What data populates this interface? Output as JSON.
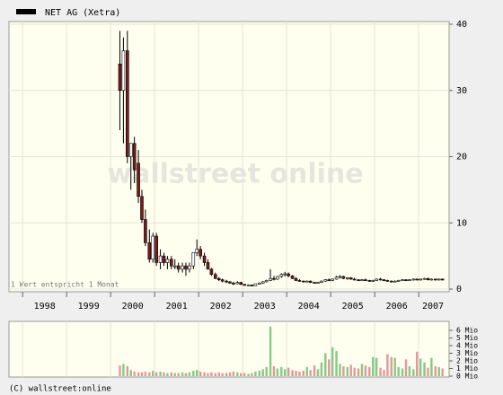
{
  "chart_data": {
    "type": "candlestick",
    "series": [
      {
        "name": "NET AG (Xetra)",
        "color": "#000000",
        "up_color": "#ffffff",
        "down_color": "#7a1c1c",
        "open": [
          34,
          30,
          36,
          20,
          22,
          19,
          14,
          10.5,
          7,
          4.5,
          8,
          4,
          5,
          4,
          4.5,
          3.5,
          3.5,
          3,
          3.5,
          3,
          3.5,
          5.5,
          6,
          5,
          4,
          3,
          2.2,
          1.6,
          1.4,
          1.2,
          1.1,
          0.9,
          0.8,
          1,
          0.7,
          0.6,
          0.6,
          0.5,
          0.8,
          0.9,
          1.1,
          1.3,
          1.6,
          1.5,
          1.9,
          2.2,
          2.3,
          2,
          1.6,
          1.3,
          1.2,
          1.1,
          1.2,
          1,
          0.9,
          1,
          1.2,
          1.4,
          1.3,
          1.5,
          1.8,
          1.9,
          1.6,
          1.7,
          1.5,
          1.4,
          1.3,
          1.4,
          1.3,
          1.2,
          1.3,
          1.5,
          1.4,
          1.3,
          1.2,
          1.1,
          1.2,
          1.3,
          1.4,
          1.3,
          1.4,
          1.5,
          1.4,
          1.5,
          1.6,
          1.4,
          1.5,
          1.4,
          1.5
        ],
        "high": [
          39,
          38,
          39,
          22,
          23,
          21,
          15,
          12,
          9,
          8.5,
          8.5,
          6,
          5.5,
          5,
          5,
          4.5,
          4,
          4,
          4,
          4,
          5.5,
          7.5,
          6.5,
          5.5,
          4.5,
          3.2,
          2.5,
          1.8,
          1.6,
          1.4,
          1.2,
          1.1,
          1.2,
          1.1,
          0.8,
          0.7,
          0.7,
          0.8,
          1,
          1.2,
          1.4,
          3,
          2,
          2,
          2.4,
          2.6,
          2.5,
          2.1,
          1.8,
          1.5,
          1.3,
          1.3,
          1.3,
          1.1,
          1.1,
          1.3,
          1.5,
          1.6,
          1.6,
          2,
          2.1,
          2,
          1.8,
          1.8,
          1.7,
          1.5,
          1.5,
          1.6,
          1.4,
          1.4,
          1.6,
          1.7,
          1.5,
          1.4,
          1.3,
          1.3,
          1.4,
          1.5,
          1.5,
          1.5,
          1.6,
          1.6,
          1.6,
          1.7,
          1.7,
          1.6,
          1.6,
          1.6,
          1.6
        ],
        "low": [
          24,
          22,
          19,
          15,
          16,
          13,
          10,
          6.5,
          4,
          4,
          3.5,
          3,
          3.5,
          3,
          3,
          3,
          2.5,
          2.5,
          2,
          2.5,
          3,
          5,
          4.5,
          3.5,
          3,
          2,
          1.5,
          1.2,
          1,
          0.9,
          0.8,
          0.6,
          0.7,
          0.6,
          0.5,
          0.5,
          0.4,
          0.5,
          0.7,
          0.8,
          1,
          1.2,
          1.3,
          1.4,
          1.7,
          1.9,
          1.8,
          1.5,
          1.2,
          1.1,
          1,
          1,
          0.9,
          0.8,
          0.8,
          0.9,
          1.1,
          1.2,
          1.2,
          1.4,
          1.6,
          1.5,
          1.4,
          1.4,
          1.3,
          1.2,
          1.2,
          1.2,
          1.1,
          1.1,
          1.2,
          1.3,
          1.2,
          1.1,
          1,
          1,
          1.1,
          1.2,
          1.2,
          1.2,
          1.3,
          1.3,
          1.3,
          1.4,
          1.3,
          1.3,
          1.3,
          1.3,
          1.3
        ],
        "close": [
          30,
          36,
          20,
          22,
          18,
          14,
          10.5,
          7,
          4.5,
          8,
          4,
          5,
          4,
          4.5,
          3.5,
          3.5,
          3,
          3.5,
          3,
          3.5,
          5.5,
          6,
          5,
          4,
          3,
          2.2,
          1.6,
          1.4,
          1.2,
          1.1,
          0.9,
          0.8,
          1,
          0.7,
          0.6,
          0.6,
          0.5,
          0.8,
          0.9,
          1.1,
          1.3,
          1.6,
          1.5,
          1.9,
          2.2,
          2.3,
          2,
          1.6,
          1.3,
          1.2,
          1.1,
          1.2,
          1,
          0.9,
          1,
          1.2,
          1.4,
          1.3,
          1.5,
          1.8,
          1.9,
          1.6,
          1.7,
          1.5,
          1.4,
          1.3,
          1.4,
          1.3,
          1.2,
          1.3,
          1.5,
          1.4,
          1.3,
          1.2,
          1.1,
          1.2,
          1.3,
          1.4,
          1.3,
          1.4,
          1.5,
          1.4,
          1.5,
          1.6,
          1.4,
          1.5,
          1.4,
          1.5,
          1.4
        ],
        "volume": [
          1.4,
          1.6,
          1.3,
          0.8,
          0.6,
          0.5,
          0.5,
          0.6,
          0.5,
          0.7,
          0.5,
          0.6,
          0.5,
          0.4,
          0.5,
          0.4,
          0.4,
          0.5,
          0.4,
          0.5,
          0.7,
          0.8,
          0.6,
          0.5,
          0.4,
          0.5,
          0.4,
          0.5,
          0.4,
          0.4,
          0.5,
          0.6,
          0.5,
          0.4,
          0.4,
          0.3,
          0.4,
          0.6,
          0.7,
          0.9,
          1.2,
          6.5,
          1.3,
          1,
          1.2,
          0.9,
          1.1,
          0.8,
          0.7,
          0.6,
          0.7,
          1.2,
          0.8,
          1.4,
          0.9,
          1.8,
          3,
          2.2,
          3.8,
          3.3,
          1.6,
          1.3,
          1.2,
          1.5,
          1.1,
          1,
          1.6,
          1.4,
          1.2,
          2.5,
          2.4,
          1.1,
          0.8,
          2.9,
          2.5,
          2.4,
          1.2,
          1,
          2.2,
          1.3,
          0.9,
          3.2,
          2.3,
          1.8,
          1.1,
          2.4,
          1.3,
          1.2,
          1
        ],
        "volume_up_color": "#88c888",
        "volume_down_color": "#e09a9a"
      }
    ],
    "x": [
      2000.21,
      2000.29,
      2000.38,
      2000.46,
      2000.54,
      2000.63,
      2000.71,
      2000.79,
      2000.88,
      2000.96,
      2001.04,
      2001.13,
      2001.21,
      2001.29,
      2001.38,
      2001.46,
      2001.54,
      2001.63,
      2001.71,
      2001.79,
      2001.88,
      2001.96,
      2002.04,
      2002.13,
      2002.21,
      2002.29,
      2002.38,
      2002.46,
      2002.54,
      2002.63,
      2002.71,
      2002.79,
      2002.88,
      2002.96,
      2003.04,
      2003.13,
      2003.21,
      2003.29,
      2003.38,
      2003.46,
      2003.54,
      2003.63,
      2003.71,
      2003.79,
      2003.88,
      2003.96,
      2004.04,
      2004.13,
      2004.21,
      2004.29,
      2004.38,
      2004.46,
      2004.54,
      2004.63,
      2004.71,
      2004.79,
      2004.88,
      2004.96,
      2005.04,
      2005.13,
      2005.21,
      2005.29,
      2005.38,
      2005.46,
      2005.54,
      2005.63,
      2005.71,
      2005.79,
      2005.88,
      2005.96,
      2006.04,
      2006.13,
      2006.21,
      2006.29,
      2006.38,
      2006.46,
      2006.54,
      2006.63,
      2006.71,
      2006.79,
      2006.88,
      2006.96,
      2007.04,
      2007.13,
      2007.21,
      2007.29,
      2007.38,
      2007.46,
      2007.54
    ],
    "xlim": [
      1997.69,
      2007.69
    ],
    "xticks": [
      1998,
      1999,
      2000,
      2001,
      2002,
      2003,
      2004,
      2005,
      2006,
      2007
    ],
    "ylim": [
      0,
      40
    ],
    "yticks": [
      0,
      10,
      20,
      30,
      40
    ],
    "volume_ylim": [
      0,
      6
    ],
    "volume_yticks": [
      {
        "value": 0,
        "label": "0 Mio"
      },
      {
        "value": 1,
        "label": "1 Mio"
      },
      {
        "value": 2,
        "label": "2 Mio"
      },
      {
        "value": 3,
        "label": "3 Mio"
      },
      {
        "value": 4,
        "label": "4 Mio"
      },
      {
        "value": 5,
        "label": "5 Mio"
      },
      {
        "value": 6,
        "label": "6 Mio"
      }
    ],
    "grid": true,
    "annotations": [
      "1 Wert entspricht 1 Monat",
      "wallstreet online",
      "(C) wallstreet:online"
    ]
  }
}
